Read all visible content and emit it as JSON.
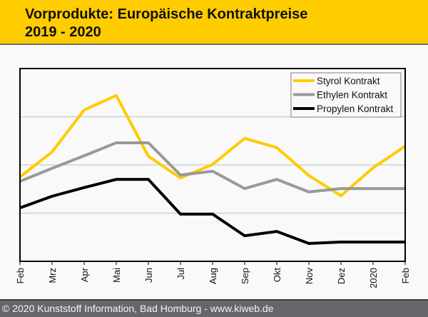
{
  "header": {
    "title_line1": "Vorprodukte: Europäische Kontraktpreise",
    "title_line2": "2019 - 2020"
  },
  "footer": {
    "text": "© 2020 Kunststoff Information, Bad Homburg - www.kiweb.de"
  },
  "colors": {
    "header_bg": "#ffcc00",
    "styrol": "#ffcc00",
    "ethylen": "#999999",
    "propylen": "#000000",
    "gridline": "#d0d0d0",
    "footer_bg": "#67676b"
  },
  "chart_data": {
    "type": "line",
    "title": "Vorprodukte: Europäische Kontraktpreise 2019 - 2020",
    "xlabel": "",
    "ylabel": "",
    "y_tick_labels_shown": false,
    "ylim": [
      0,
      4
    ],
    "y_gridlines": [
      1,
      2,
      3
    ],
    "grid": true,
    "legend_position": "top-right",
    "categories": [
      "Feb",
      "Mrz",
      "Apr",
      "Mai",
      "Jun",
      "Jul",
      "Aug",
      "Sep",
      "Okt",
      "Nov",
      "Dez",
      "2020",
      "Feb"
    ],
    "series": [
      {
        "name": "Styrol Kontrakt",
        "color": "#ffcc00",
        "values": [
          1.75,
          2.27,
          3.14,
          3.44,
          2.18,
          1.73,
          2.01,
          2.55,
          2.36,
          1.78,
          1.36,
          1.94,
          2.39
        ]
      },
      {
        "name": "Ethylen Kontrakt",
        "color": "#999999",
        "values": [
          1.66,
          1.93,
          2.19,
          2.46,
          2.46,
          1.79,
          1.87,
          1.51,
          1.7,
          1.44,
          1.51,
          1.51,
          1.51
        ]
      },
      {
        "name": "Propylen Kontrakt",
        "color": "#000000",
        "values": [
          1.11,
          1.35,
          1.53,
          1.7,
          1.7,
          0.98,
          0.98,
          0.53,
          0.62,
          0.37,
          0.4,
          0.4,
          0.4
        ]
      }
    ]
  }
}
